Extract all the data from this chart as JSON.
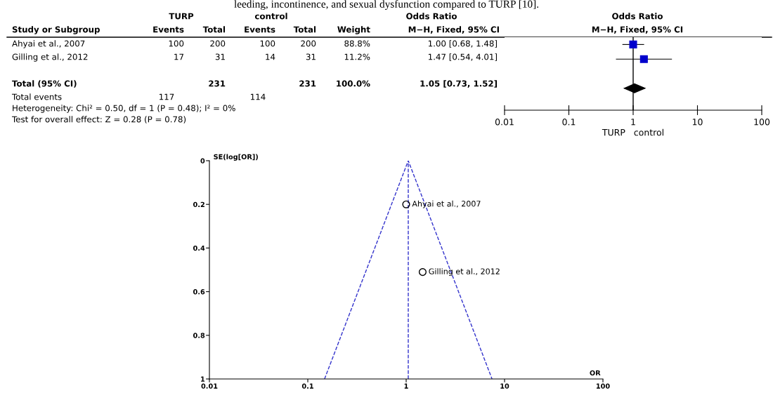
{
  "chart_data": [
    {
      "type": "other",
      "annotations": [
        "leeding, incontinence, and sexual dysfunction compared to TURP [10].",
        "TURP",
        "control",
        "Odds Ratio",
        "Study or Subgroup",
        "Events",
        "Total",
        "Events",
        "Total",
        "Weight",
        "M−H, Fixed, 95% CI",
        "Ahyai et al., 2007",
        "100",
        "200",
        "100",
        "200",
        "88.8%",
        "1.00 [0.68, 1.48]",
        "Gilling et al., 2012",
        "17",
        "31",
        "14",
        "31",
        "11.2%",
        "1.47 [0.54, 4.01]",
        "Total (95% CI)",
        "231",
        "231",
        "100.0%",
        "1.05 [0.73, 1.52]",
        "Total events",
        "117",
        "114",
        "Heterogeneity: Chi² = 0.50, df = 1 (P = 0.48); I² = 0%",
        "Test for overall effect: Z = 0.28 (P = 0.78)"
      ]
    },
    {
      "type": "scatter",
      "orientation": "horizontal",
      "title": "Odds Ratio",
      "subtitle": "M−H, Fixed, 95% CI",
      "xlabel": "TURP   control",
      "categories": [
        null,
        null,
        null,
        null,
        null
      ],
      "log": "x",
      "xlim": [
        0.01,
        100
      ],
      "xticks": [
        0.01,
        0.1,
        1,
        10,
        100
      ],
      "grid": false,
      "tick_labels": "x",
      "ref_lines": [
        {
          "axis": "x",
          "value": 1,
          "color": "#000000",
          "line_style": "solid"
        }
      ],
      "series": [
        {
          "color": "#0000cc",
          "marker": "square",
          "values": [
            1.0,
            1.47,
            null,
            null,
            null
          ],
          "errors": [
            [
              0.68,
              1.48
            ],
            [
              0.54,
              4.01
            ],
            null,
            null,
            null
          ]
        },
        {
          "color": "#000000",
          "marker": "diamond",
          "values": [
            null,
            null,
            null,
            1.05,
            null
          ],
          "errors": [
            null,
            null,
            null,
            [
              0.73,
              1.52
            ],
            null
          ]
        }
      ]
    },
    {
      "type": "scatter",
      "xlabel": "OR",
      "ylabel": "SE(log[OR])",
      "log": "x",
      "xlim": [
        0.01,
        100
      ],
      "xticks": [
        0.01,
        0.1,
        1,
        10,
        100
      ],
      "ylim": [
        1,
        0
      ],
      "yticks": [
        0,
        0.2,
        0.4,
        0.6,
        0.8,
        1
      ],
      "grid": false,
      "ref_lines": [
        {
          "axis": "x",
          "value": 1.05,
          "color": "#3333cc",
          "line_style": "dashed"
        }
      ],
      "annotations": [
        {
          "text": "Ahyai et al., 2007",
          "x": 1.0,
          "y": 0.2
        },
        {
          "text": "Gilling et al., 2012",
          "x": 1.47,
          "y": 0.51
        }
      ],
      "series": [
        {
          "type": "scatter",
          "color": "#000000",
          "marker": "circle",
          "x": [
            1.0,
            1.47
          ],
          "values": [
            0.2,
            0.51
          ]
        },
        {
          "type": "line",
          "color": "#3333cc",
          "line_style": "dashed",
          "marker": "none",
          "x": [
            0.148,
            1.05,
            7.46
          ],
          "values": [
            1,
            0,
            1
          ]
        }
      ]
    }
  ]
}
